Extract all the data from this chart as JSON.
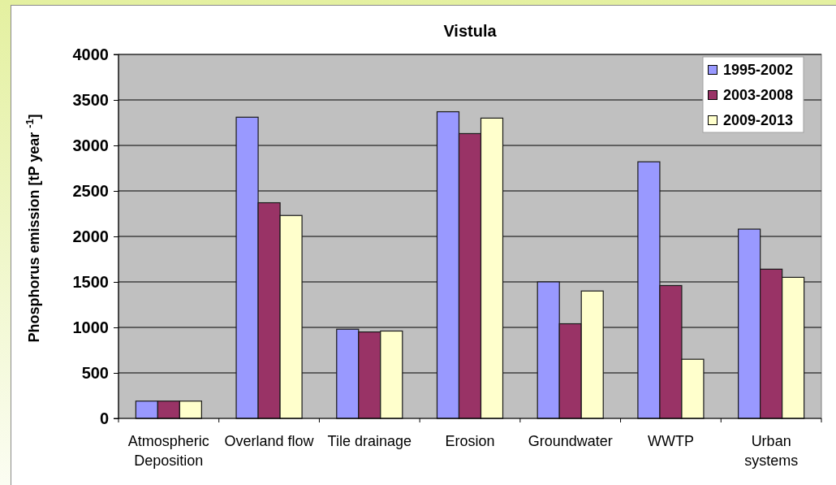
{
  "chart_data": {
    "type": "bar",
    "title": "Vistula",
    "ylabel": "Phosphorus emission [tP year $^{-1}$]",
    "categories": [
      "Atmospheric Deposition",
      "Overland flow",
      "Tile drainage",
      "Erosion",
      "Groundwater",
      "WWTP",
      "Urban systems"
    ],
    "series": [
      {
        "name": "1995-2002",
        "color": "#9999ff",
        "values": [
          190,
          3310,
          980,
          3370,
          1500,
          2820,
          2080
        ]
      },
      {
        "name": "2003-2008",
        "color": "#993366",
        "values": [
          190,
          2370,
          950,
          3130,
          1040,
          1460,
          1640
        ]
      },
      {
        "name": "2009-2013",
        "color": "#ffffcc",
        "values": [
          190,
          2230,
          960,
          3300,
          1400,
          650,
          1550
        ]
      }
    ],
    "ylim": [
      0,
      4000
    ],
    "yticks": [
      0,
      500,
      1000,
      1500,
      2000,
      2500,
      3000,
      3500,
      4000
    ],
    "grid": "y",
    "legend": "top right"
  }
}
